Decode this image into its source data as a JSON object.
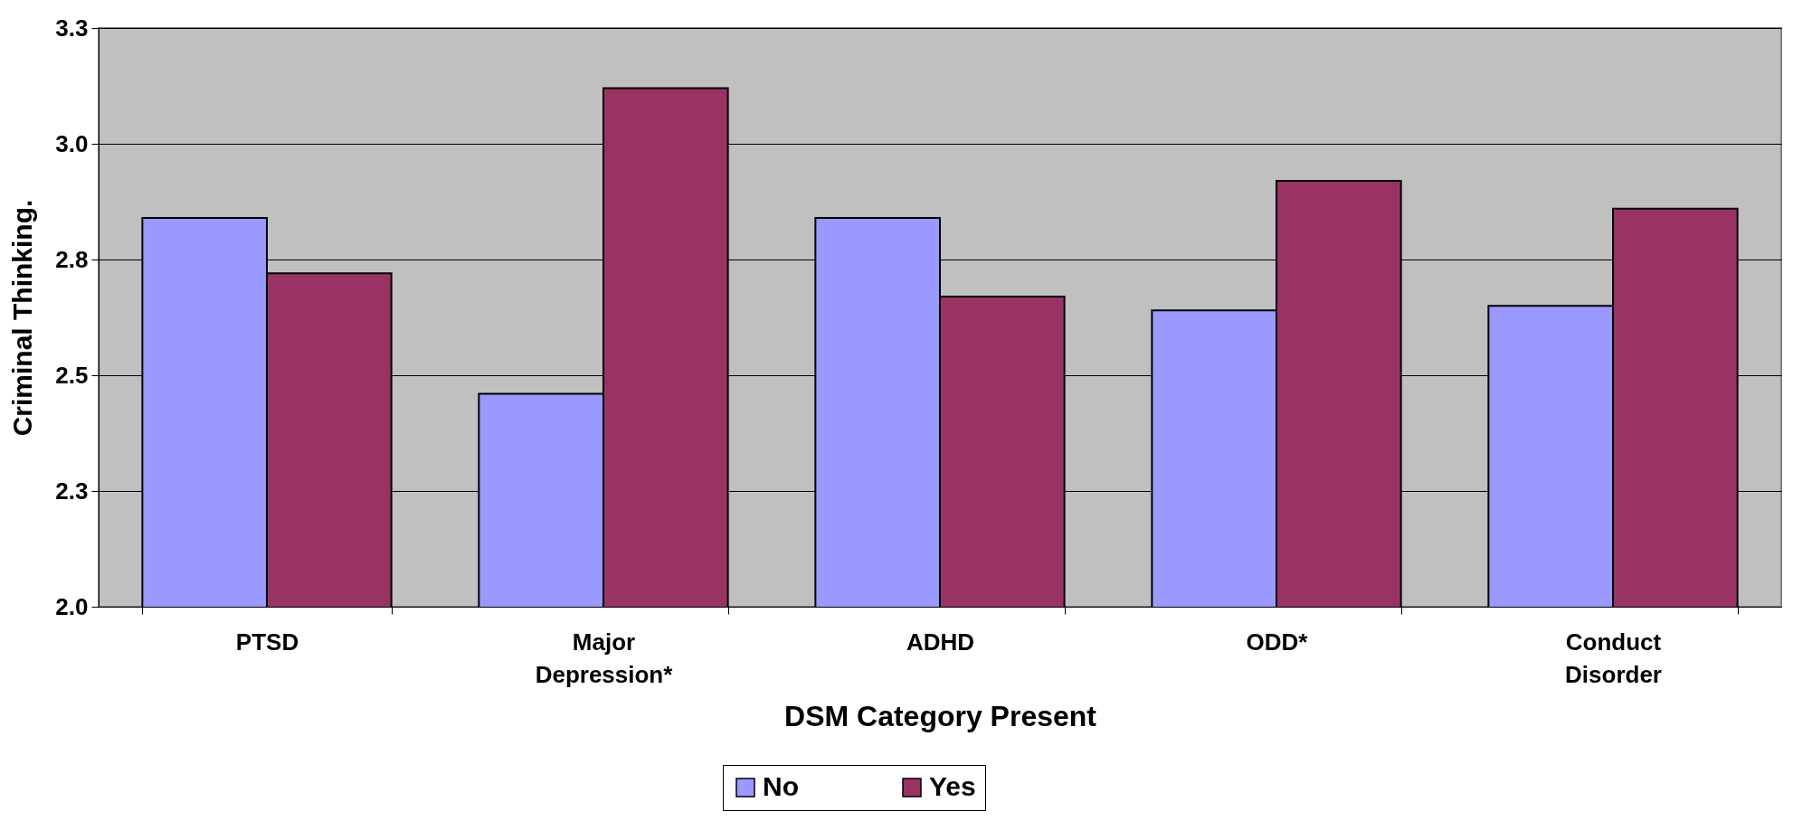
{
  "chart_data": {
    "type": "bar",
    "xlabel": "DSM Category Present",
    "ylabel": "Criminal Thinking.",
    "categories": [
      "PTSD",
      "Major Depression*",
      "ADHD",
      "ODD*",
      "Conduct Disorder"
    ],
    "series": [
      {
        "name": "No",
        "color": "#9999ff",
        "values": [
          2.84,
          2.46,
          2.84,
          2.64,
          2.65
        ]
      },
      {
        "name": "Yes",
        "color": "#993366",
        "values": [
          2.72,
          3.12,
          2.67,
          2.92,
          2.86
        ]
      }
    ],
    "ylim": [
      2.0,
      3.25
    ],
    "yticks": [
      {
        "value": 2.0,
        "label": "2.0"
      },
      {
        "value": 2.25,
        "label": "2.3"
      },
      {
        "value": 2.5,
        "label": "2.5"
      },
      {
        "value": 2.75,
        "label": "2.8"
      },
      {
        "value": 3.0,
        "label": "3.0"
      },
      {
        "value": 3.25,
        "label": "3.3"
      }
    ],
    "grid": "y",
    "legend": "bottom"
  }
}
